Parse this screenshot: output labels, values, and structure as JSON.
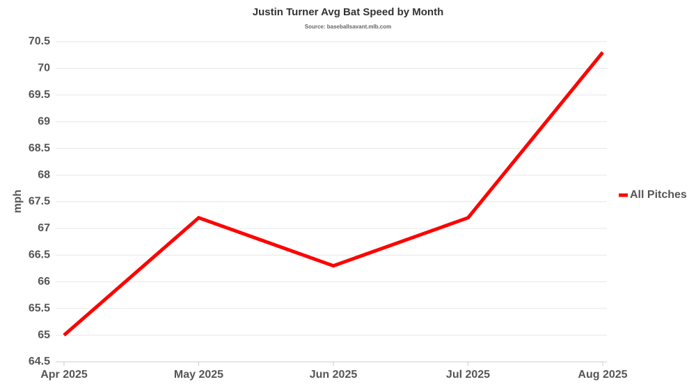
{
  "chart_data": {
    "type": "line",
    "title": "Justin Turner Avg Bat Speed by Month",
    "subtitle": "Source: baseballsavant.mlb.com",
    "y_label": "mph",
    "categories": [
      "Apr 2025",
      "May 2025",
      "Jun 2025",
      "Jul 2025",
      "Aug 2025"
    ],
    "series": [
      {
        "name": "All Pitches",
        "color": "#ff0000",
        "values": [
          65,
          67.2,
          66.3,
          67.2,
          70.3
        ]
      }
    ],
    "ylim": [
      64.5,
      70.5
    ],
    "yticks": [
      64.5,
      65,
      65.5,
      66,
      66.5,
      67,
      67.5,
      68,
      68.5,
      69,
      69.5,
      70,
      70.5
    ],
    "grid": true,
    "legend": "right"
  }
}
